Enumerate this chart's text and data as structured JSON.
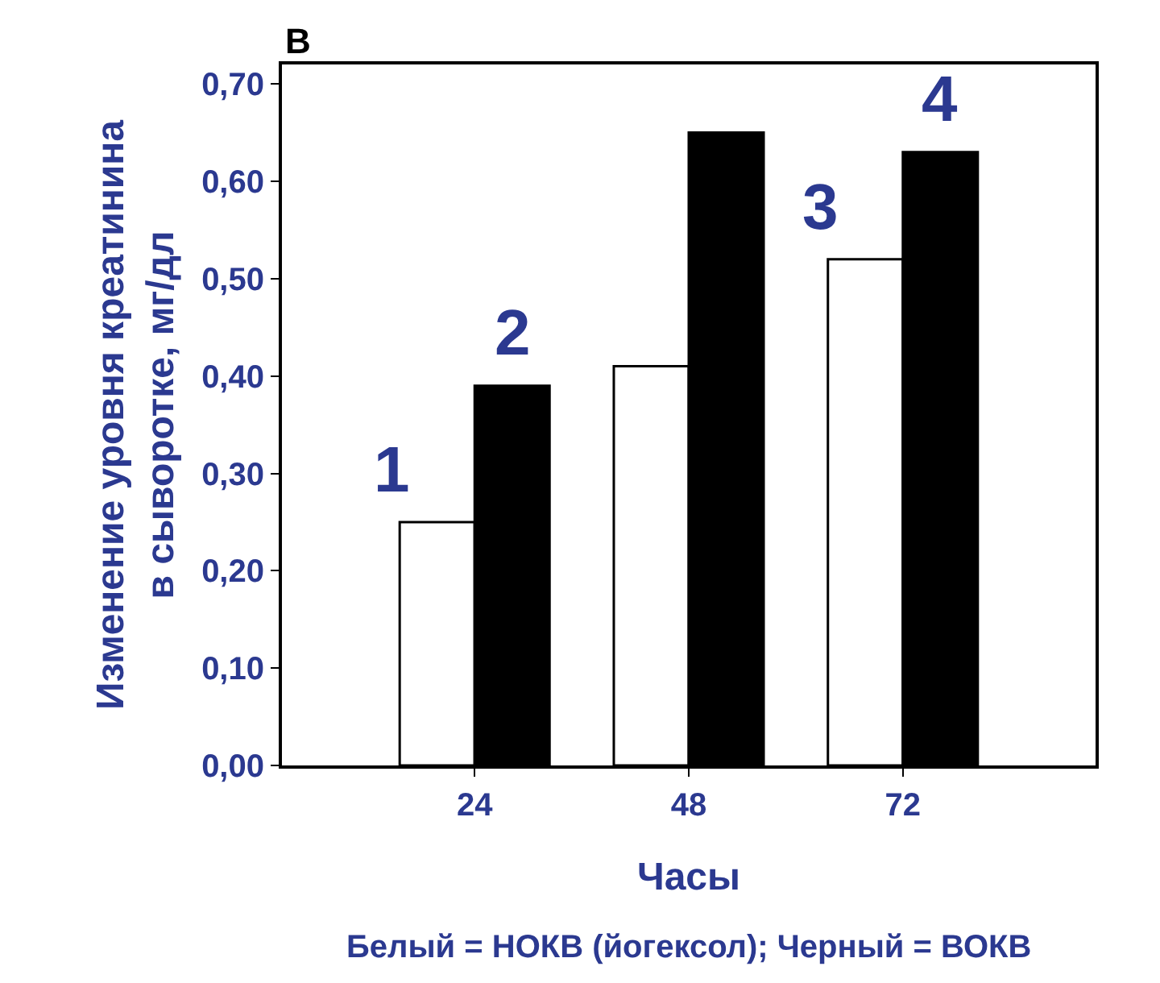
{
  "chart_data": {
    "type": "bar",
    "title": "В",
    "xlabel": "Часы",
    "ylabel": "Изменение уровня креатинина\nв сыворотке, мг/дл",
    "categories": [
      "24",
      "48",
      "72"
    ],
    "series": [
      {
        "color": "#ffffff",
        "values": [
          0.25,
          0.41,
          0.52
        ]
      },
      {
        "color": "#000000",
        "values": [
          0.39,
          0.65,
          0.63
        ]
      }
    ],
    "ylim": [
      0,
      0.72
    ],
    "yticks": [
      {
        "value": 0,
        "label": "0,00"
      },
      {
        "value": 0.1,
        "label": "0,10"
      },
      {
        "value": 0.2,
        "label": "0,20"
      },
      {
        "value": 0.3,
        "label": "0,30"
      },
      {
        "value": 0.4,
        "label": "0,40"
      },
      {
        "value": 0.5,
        "label": "0,50"
      },
      {
        "value": 0.6,
        "label": "0,60"
      },
      {
        "value": 0.7,
        "label": "0,70"
      }
    ],
    "annotations": [
      {
        "text": "1",
        "x": "24",
        "y": 0.25
      },
      {
        "text": "2",
        "x": "24",
        "y": 0.39
      },
      {
        "text": "3",
        "x": "72",
        "y": 0.52
      },
      {
        "text": "4",
        "x": "72",
        "y": 0.63
      },
      "Белый = НОКВ (йогексол); Черный = ВОКВ"
    ]
  }
}
